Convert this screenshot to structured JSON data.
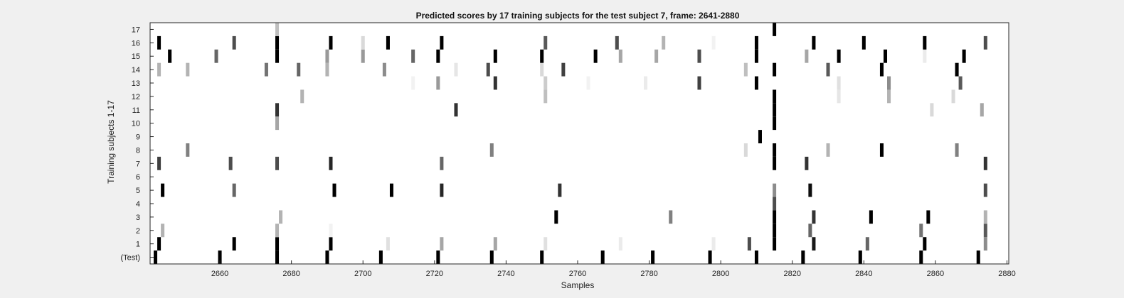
{
  "chart_data": {
    "type": "heatmap",
    "title": "Predicted scores by 17 training subjects for the test subject 7, frame: 2641-2880",
    "xlabel": "Samples",
    "ylabel": "Training subjects 1-17",
    "xlim": [
      2641,
      2880
    ],
    "x_ticks": [
      2660,
      2680,
      2700,
      2720,
      2740,
      2760,
      2780,
      2800,
      2820,
      2840,
      2860,
      2880
    ],
    "y_labels": [
      "(Test)",
      "1",
      "2",
      "3",
      "4",
      "5",
      "6",
      "7",
      "8",
      "9",
      "10",
      "11",
      "12",
      "13",
      "14",
      "15",
      "16",
      "17"
    ],
    "colormap": "white-to-black",
    "cells": [
      {
        "row": 0,
        "points": [
          [
            2642,
            1
          ],
          [
            2660,
            1
          ],
          [
            2676,
            1
          ],
          [
            2690,
            1
          ],
          [
            2705,
            1
          ],
          [
            2721,
            1
          ],
          [
            2736,
            1
          ],
          [
            2750,
            1
          ],
          [
            2767,
            1
          ],
          [
            2781,
            1
          ],
          [
            2797,
            1
          ],
          [
            2810,
            1
          ],
          [
            2823,
            1
          ],
          [
            2839,
            1
          ],
          [
            2856,
            1
          ],
          [
            2872,
            1
          ]
        ]
      },
      {
        "row": 1,
        "points": [
          [
            2643,
            1
          ],
          [
            2664,
            1
          ],
          [
            2676,
            1
          ],
          [
            2691,
            1
          ],
          [
            2707,
            0.12
          ],
          [
            2722,
            0.35
          ],
          [
            2737,
            0.35
          ],
          [
            2751,
            0.12
          ],
          [
            2772,
            0.08
          ],
          [
            2798,
            0.08
          ],
          [
            2808,
            0.7
          ],
          [
            2815,
            1
          ],
          [
            2826,
            0.9
          ],
          [
            2841,
            0.6
          ],
          [
            2857,
            1
          ],
          [
            2874,
            0.45
          ]
        ]
      },
      {
        "row": 2,
        "points": [
          [
            2644,
            0.3
          ],
          [
            2676,
            0.3
          ],
          [
            2691,
            0.05
          ],
          [
            2815,
            1
          ],
          [
            2825,
            0.6
          ],
          [
            2856,
            0.55
          ],
          [
            2874,
            0.65
          ]
        ]
      },
      {
        "row": 3,
        "points": [
          [
            2677,
            0.3
          ],
          [
            2754,
            1
          ],
          [
            2786,
            0.5
          ],
          [
            2815,
            1
          ],
          [
            2826,
            0.8
          ],
          [
            2842,
            1
          ],
          [
            2858,
            1
          ],
          [
            2874,
            0.3
          ]
        ]
      },
      {
        "row": 4,
        "points": [
          [
            2815,
            0.7
          ]
        ]
      },
      {
        "row": 5,
        "points": [
          [
            2644,
            1
          ],
          [
            2664,
            0.6
          ],
          [
            2692,
            1
          ],
          [
            2708,
            1
          ],
          [
            2722,
            0.85
          ],
          [
            2755,
            0.8
          ],
          [
            2815,
            0.45
          ],
          [
            2825,
            0.95
          ],
          [
            2874,
            0.7
          ]
        ]
      },
      {
        "row": 6,
        "points": []
      },
      {
        "row": 7,
        "points": [
          [
            2643,
            0.75
          ],
          [
            2663,
            0.7
          ],
          [
            2676,
            0.7
          ],
          [
            2691,
            0.85
          ],
          [
            2722,
            0.6
          ],
          [
            2815,
            1
          ],
          [
            2824,
            0.8
          ],
          [
            2874,
            0.8
          ]
        ]
      },
      {
        "row": 8,
        "points": [
          [
            2651,
            0.5
          ],
          [
            2736,
            0.5
          ],
          [
            2807,
            0.15
          ],
          [
            2815,
            1
          ],
          [
            2830,
            0.3
          ],
          [
            2845,
            1
          ],
          [
            2866,
            0.5
          ]
        ]
      },
      {
        "row": 9,
        "points": [
          [
            2811,
            1
          ]
        ]
      },
      {
        "row": 10,
        "points": [
          [
            2676,
            0.35
          ],
          [
            2815,
            1
          ]
        ]
      },
      {
        "row": 11,
        "points": [
          [
            2676,
            0.8
          ],
          [
            2726,
            0.8
          ],
          [
            2815,
            1
          ],
          [
            2859,
            0.15
          ],
          [
            2873,
            0.35
          ]
        ]
      },
      {
        "row": 12,
        "points": [
          [
            2683,
            0.3
          ],
          [
            2751,
            0.25
          ],
          [
            2815,
            1
          ],
          [
            2833,
            0.1
          ],
          [
            2847,
            0.3
          ],
          [
            2865,
            0.15
          ]
        ]
      },
      {
        "row": 13,
        "points": [
          [
            2714,
            0.05
          ],
          [
            2721,
            0.4
          ],
          [
            2737,
            0.8
          ],
          [
            2751,
            0.2
          ],
          [
            2763,
            0.05
          ],
          [
            2779,
            0.08
          ],
          [
            2794,
            0.75
          ],
          [
            2810,
            1
          ],
          [
            2833,
            0.12
          ],
          [
            2847,
            0.45
          ],
          [
            2867,
            0.65
          ]
        ]
      },
      {
        "row": 14,
        "points": [
          [
            2643,
            0.3
          ],
          [
            2651,
            0.3
          ],
          [
            2673,
            0.55
          ],
          [
            2682,
            0.6
          ],
          [
            2690,
            0.3
          ],
          [
            2706,
            0.45
          ],
          [
            2726,
            0.1
          ],
          [
            2735,
            0.7
          ],
          [
            2750,
            0.15
          ],
          [
            2756,
            0.75
          ],
          [
            2807,
            0.25
          ],
          [
            2815,
            1
          ],
          [
            2830,
            0.65
          ],
          [
            2845,
            1
          ],
          [
            2866,
            1
          ]
        ]
      },
      {
        "row": 15,
        "points": [
          [
            2646,
            1
          ],
          [
            2659,
            0.6
          ],
          [
            2676,
            1
          ],
          [
            2690,
            0.4
          ],
          [
            2700,
            0.4
          ],
          [
            2714,
            0.6
          ],
          [
            2721,
            1
          ],
          [
            2737,
            1
          ],
          [
            2750,
            1
          ],
          [
            2765,
            1
          ],
          [
            2772,
            0.35
          ],
          [
            2782,
            0.35
          ],
          [
            2794,
            0.7
          ],
          [
            2810,
            1
          ],
          [
            2824,
            0.35
          ],
          [
            2833,
            1
          ],
          [
            2846,
            1
          ],
          [
            2857,
            0.08
          ],
          [
            2868,
            1
          ]
        ]
      },
      {
        "row": 16,
        "points": [
          [
            2643,
            1
          ],
          [
            2664,
            0.7
          ],
          [
            2676,
            1
          ],
          [
            2691,
            1
          ],
          [
            2700,
            0.15
          ],
          [
            2707,
            1
          ],
          [
            2722,
            1
          ],
          [
            2751,
            0.65
          ],
          [
            2771,
            0.7
          ],
          [
            2784,
            0.3
          ],
          [
            2798,
            0.05
          ],
          [
            2810,
            1
          ],
          [
            2826,
            1
          ],
          [
            2840,
            1
          ],
          [
            2857,
            1
          ],
          [
            2874,
            0.7
          ]
        ]
      },
      {
        "row": 17,
        "points": [
          [
            2676,
            0.25
          ],
          [
            2815,
            1
          ]
        ]
      }
    ]
  }
}
